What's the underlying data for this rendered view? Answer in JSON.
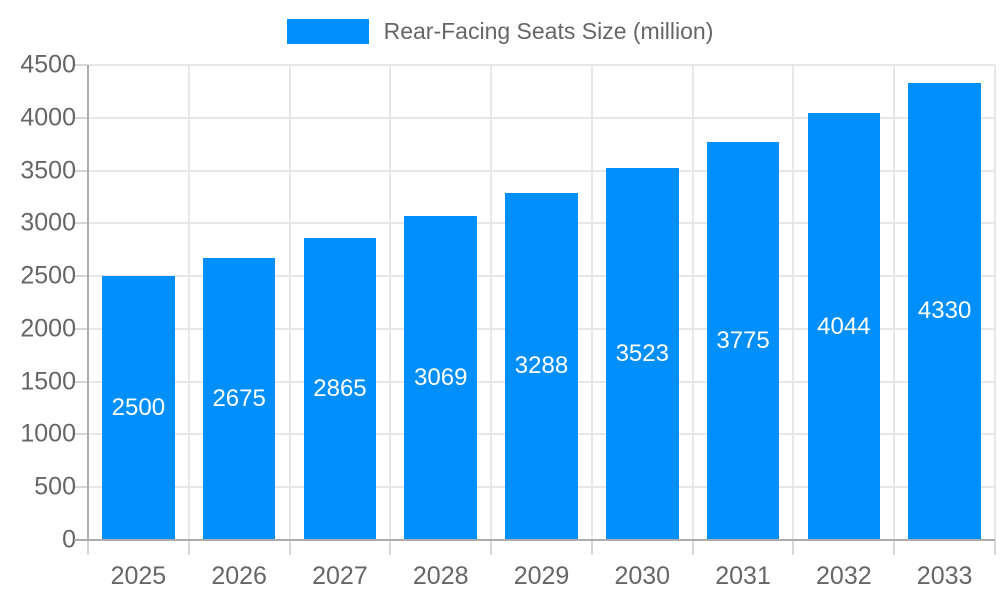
{
  "legend": {
    "label": "Rear-Facing Seats Size (million)"
  },
  "colors": {
    "bar": "#008FFB",
    "bar_label": "#FFFFFF",
    "axis_label": "#666666",
    "legend_label": "#666666",
    "grid": "#E7E7E7",
    "axis_border": "#ACACAC",
    "tick": "#D6D6D6",
    "background": "#FFFFFF"
  },
  "chart_data": {
    "type": "bar",
    "title": "Rear-Facing Seats Size (million)",
    "categories": [
      "2025",
      "2026",
      "2027",
      "2028",
      "2029",
      "2030",
      "2031",
      "2032",
      "2033"
    ],
    "series": [
      {
        "name": "Rear-Facing Seats Size (million)",
        "values": [
          2500,
          2675,
          2865,
          3069,
          3288,
          3523,
          3775,
          4044,
          4330
        ]
      }
    ],
    "xlabel": "",
    "ylabel": "",
    "ylim": [
      0,
      4500
    ],
    "ytick_step": 500,
    "y_tick_labels": [
      "0",
      "500",
      "1000",
      "1500",
      "2000",
      "2500",
      "3000",
      "3500",
      "4000",
      "4500"
    ],
    "grid": true,
    "legend_position": "top",
    "bar_labels_shown": true
  }
}
